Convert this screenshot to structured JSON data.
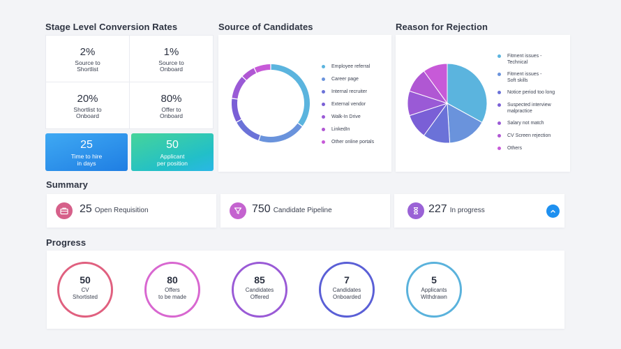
{
  "sections": {
    "stage_title": "Stage Level Conversion Rates",
    "source_title": "Source of Candidates",
    "rejection_title": "Reason for Rejection",
    "summary_title": "Summary",
    "progress_title": "Progress"
  },
  "conversion_rates": [
    {
      "value": "2%",
      "line1": "Source to",
      "line2": "Shortlist"
    },
    {
      "value": "1%",
      "line1": "Source to",
      "line2": "Onboard"
    },
    {
      "value": "20%",
      "line1": "Shortlist to",
      "line2": "Onboard"
    },
    {
      "value": "80%",
      "line1": "Offer to",
      "line2": "Onboard"
    }
  ],
  "tiles": [
    {
      "value": "25",
      "line1": "Time to hire",
      "line2": "in days"
    },
    {
      "value": "50",
      "line1": "Applicant",
      "line2": "per position"
    }
  ],
  "source_legend": [
    "Employee referral",
    "Career page",
    "Internal recruiter",
    "External vendor",
    "Walk-In Drive",
    "LinkedIn",
    "Other online portals"
  ],
  "rejection_legend": [
    {
      "line1": "Fitment issues -",
      "line2": "Technical"
    },
    {
      "line1": "Fitment issues -",
      "line2": "Soft skills"
    },
    {
      "line1": "Notice period too long",
      "line2": ""
    },
    {
      "line1": "Suspected interview",
      "line2": "malpractice"
    },
    {
      "line1": "Salary not match",
      "line2": ""
    },
    {
      "line1": "CV Screen rejection",
      "line2": ""
    },
    {
      "line1": "Others",
      "line2": ""
    }
  ],
  "summary": [
    {
      "value": "25",
      "label": "Open Requisition",
      "icon": "briefcase-icon"
    },
    {
      "value": "750",
      "label": "Candidate Pipeline",
      "icon": "funnel-icon"
    },
    {
      "value": "227",
      "label": "In progress",
      "icon": "hourglass-icon"
    }
  ],
  "progress": [
    {
      "value": "50",
      "line1": "CV",
      "line2": "Shortisted"
    },
    {
      "value": "80",
      "line1": "Offers",
      "line2": "to be made"
    },
    {
      "value": "85",
      "line1": "Candidates",
      "line2": "Offered"
    },
    {
      "value": "7",
      "line1": "Candidates",
      "line2": "Onboarded"
    },
    {
      "value": "5",
      "line1": "Applicants",
      "line2": "Withdrawn"
    }
  ],
  "chart_data": [
    {
      "type": "donut",
      "title": "Source of Candidates",
      "categories": [
        "Employee referral",
        "Career page",
        "Internal recruiter",
        "External vendor",
        "Walk-In Drive",
        "LinkedIn",
        "Other online portals"
      ],
      "values": [
        35,
        20,
        12,
        10,
        10,
        6,
        7
      ],
      "colors": [
        "#5bb4de",
        "#6a93dc",
        "#6b72d8",
        "#7a5fd6",
        "#9a5ad6",
        "#b057d3",
        "#c75ad8"
      ]
    },
    {
      "type": "pie",
      "title": "Reason for Rejection",
      "categories": [
        "Fitment issues - Technical",
        "Fitment issues - Soft skills",
        "Notice period too long",
        "Suspected interview malpractice",
        "Salary not match",
        "CV Screen rejection",
        "Others"
      ],
      "values": [
        33,
        16,
        11,
        10,
        10,
        10,
        10
      ],
      "colors": [
        "#5bb4de",
        "#6a93dc",
        "#6b72d8",
        "#7a5fd6",
        "#9a5ad6",
        "#b057d3",
        "#c75ad8"
      ]
    }
  ],
  "colors": {
    "tile1": [
      "#3aa0f0",
      "#1e79e0"
    ],
    "tile2": [
      "#43cf9a",
      "#1ab8c9"
    ],
    "summary_icons": [
      "#d6608a",
      "#c463cf",
      "#9a62d6"
    ],
    "rings": [
      "#e0607f",
      "#d867d0",
      "#9a5ad6",
      "#5a5fd6",
      "#5ab2dc"
    ],
    "scroll_button": "#1e90f0"
  }
}
